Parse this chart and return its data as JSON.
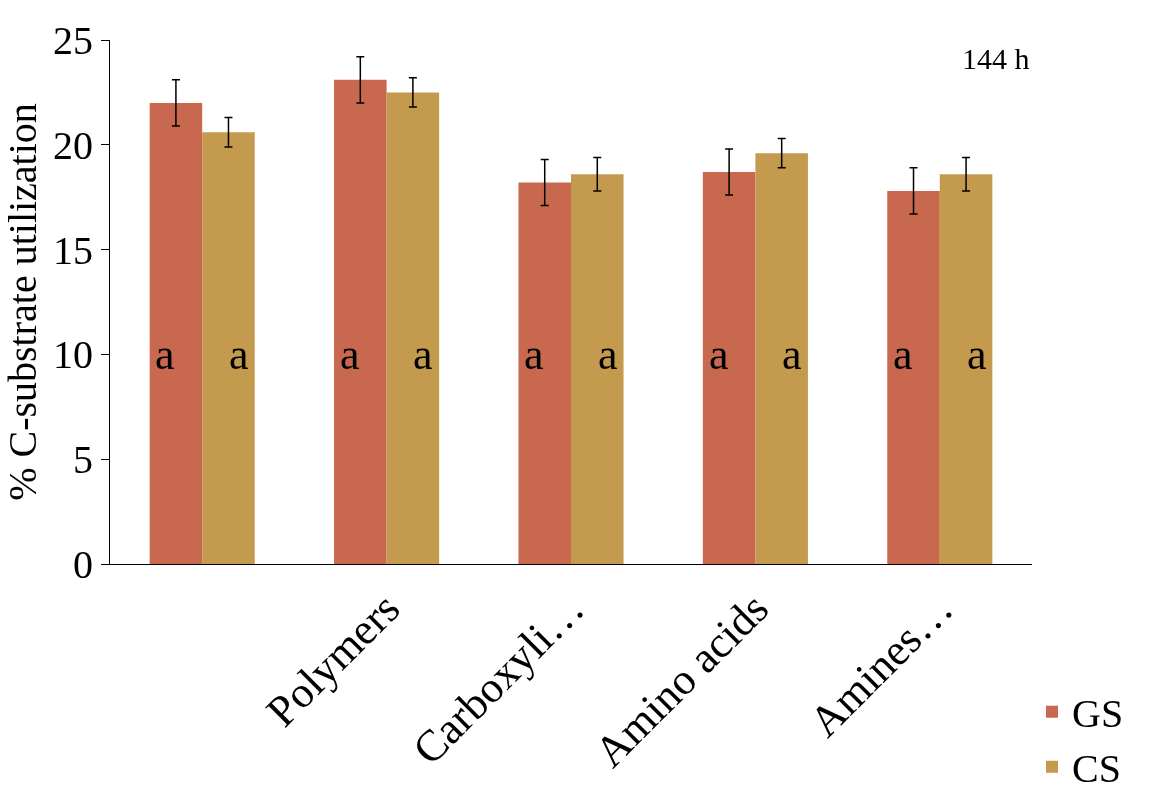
{
  "chart_data": {
    "type": "bar",
    "ylabel": "% C-substrate utilization",
    "categories": [
      null,
      "Polymers",
      "Carboxyli…",
      "Amino acids",
      "Amines…"
    ],
    "series": [
      {
        "name": "GS",
        "color": "#c8694f",
        "values": [
          22.0,
          23.1,
          18.2,
          18.7,
          17.8
        ],
        "errors": [
          1.1,
          1.1,
          1.1,
          1.1,
          1.1
        ]
      },
      {
        "name": "CS",
        "color": "#c49a4f",
        "values": [
          20.6,
          22.5,
          18.6,
          19.6,
          18.6
        ],
        "errors": [
          0.7,
          0.7,
          0.8,
          0.7,
          0.8
        ]
      }
    ],
    "ylim": [
      0,
      25
    ],
    "yticks": [
      0,
      5,
      10,
      15,
      20,
      25
    ],
    "grid": false,
    "legend": "bottom right",
    "annotations": [
      "144 h",
      "a",
      "a",
      "a",
      "a",
      "a",
      "a",
      "a",
      "a",
      "a",
      "a"
    ]
  }
}
